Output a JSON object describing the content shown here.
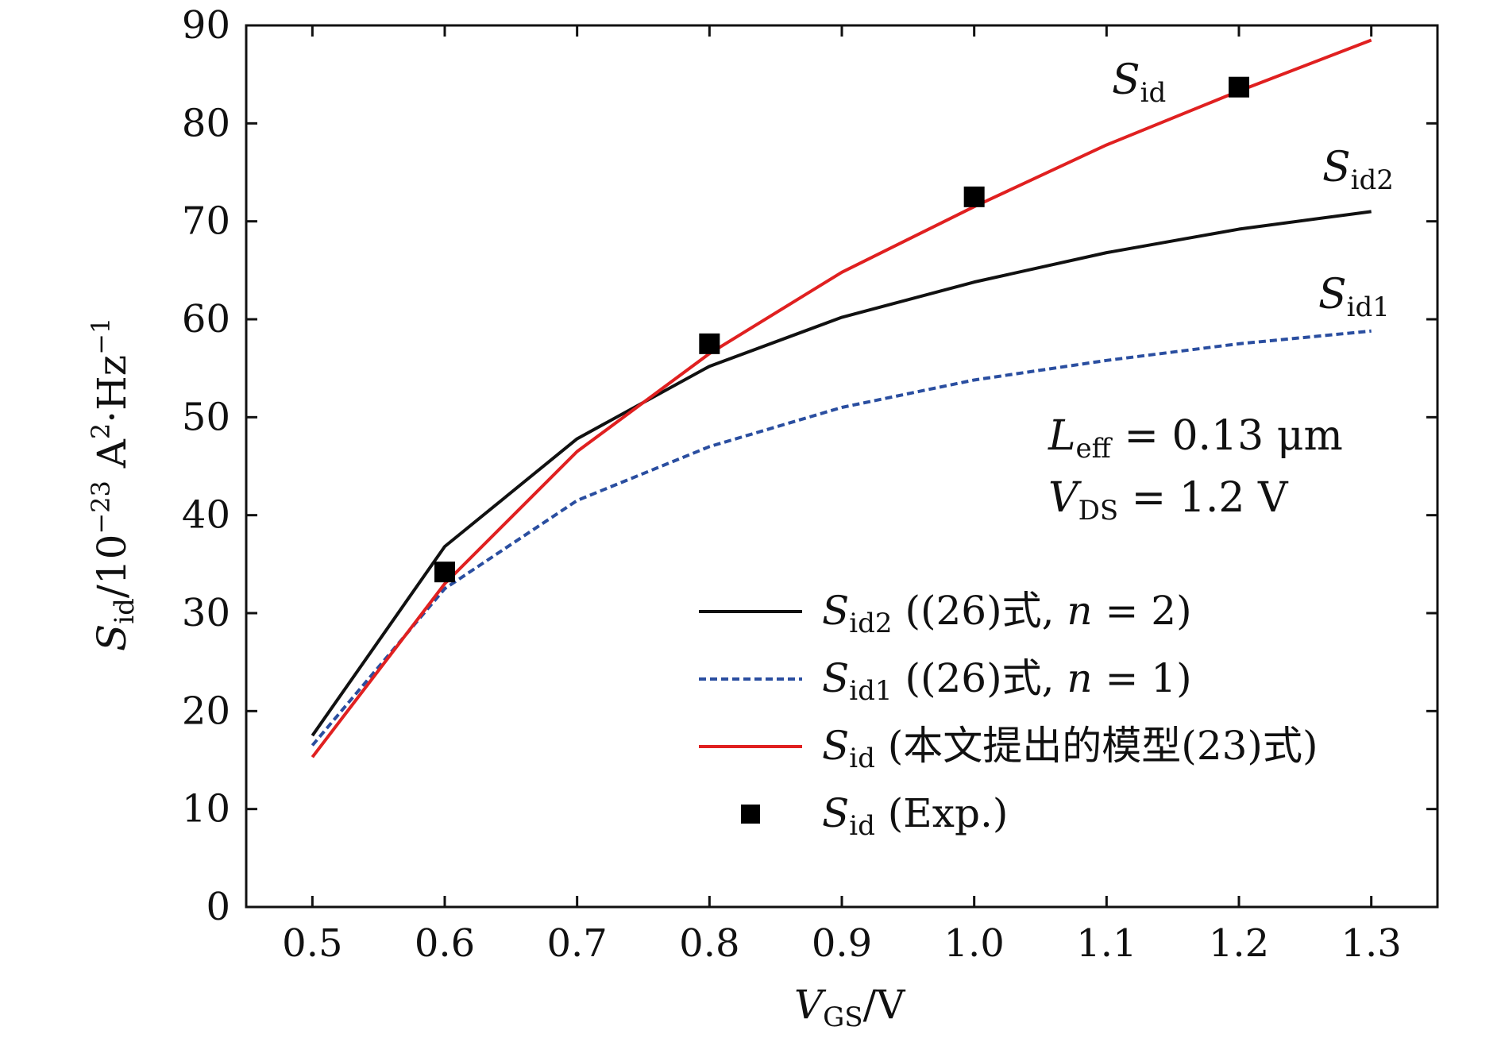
{
  "chart_data": {
    "type": "line",
    "x_ticks": [
      "0.5",
      "0.6",
      "0.7",
      "0.8",
      "0.9",
      "1.0",
      "1.1",
      "1.2",
      "1.3"
    ],
    "y_ticks": [
      "0",
      "10",
      "20",
      "30",
      "40",
      "50",
      "60",
      "70",
      "80",
      "90"
    ],
    "xlim": [
      0.45,
      1.35
    ],
    "ylim": [
      0,
      90
    ],
    "grid": false,
    "legend_position": "lower-right",
    "xlabel": {
      "main": "V",
      "sub": "GS",
      "suffix": "/V"
    },
    "ylabel": {
      "main": "S",
      "sub": "id",
      "mid": "/10",
      "exp": "−23",
      "unit": " A",
      "exp2": "2",
      "unit2": "·Hz",
      "exp3": "−1"
    },
    "series": [
      {
        "name": "S_id2",
        "legend": {
          "main": "S",
          "sub": "id2",
          "rest": " ((26)式, ",
          "var": "n",
          "tail": " = 2)"
        },
        "curve_label": {
          "main": "S",
          "sub": "id2"
        },
        "color": "#111111",
        "style": "solid",
        "x": [
          0.5,
          0.6,
          0.7,
          0.8,
          0.9,
          1.0,
          1.1,
          1.2,
          1.3
        ],
        "y": [
          17.5,
          36.8,
          47.8,
          55.2,
          60.2,
          63.8,
          66.8,
          69.2,
          71.0
        ]
      },
      {
        "name": "S_id1",
        "legend": {
          "main": "S",
          "sub": "id1",
          "rest": " ((26)式, ",
          "var": "n",
          "tail": " = 1)"
        },
        "curve_label": {
          "main": "S",
          "sub": "id1"
        },
        "color": "#2a4ea0",
        "style": "dashed",
        "x": [
          0.5,
          0.6,
          0.7,
          0.8,
          0.9,
          1.0,
          1.1,
          1.2,
          1.3
        ],
        "y": [
          16.5,
          32.5,
          41.5,
          47.0,
          51.0,
          53.8,
          55.8,
          57.5,
          58.8
        ]
      },
      {
        "name": "S_id",
        "legend": {
          "main": "S",
          "sub": "id",
          "rest": " (本文提出的模型(23)式)",
          "var": "",
          "tail": ""
        },
        "curve_label": {
          "main": "S",
          "sub": "id"
        },
        "color": "#e02020",
        "style": "solid",
        "x": [
          0.5,
          0.6,
          0.7,
          0.8,
          0.9,
          1.0,
          1.1,
          1.2,
          1.3
        ],
        "y": [
          15.3,
          33.0,
          46.5,
          56.5,
          64.8,
          71.5,
          77.8,
          83.3,
          88.5
        ]
      },
      {
        "name": "S_id (Exp.)",
        "legend": {
          "main": "S",
          "sub": "id",
          "rest": " (Exp.)",
          "var": "",
          "tail": ""
        },
        "color": "#000000",
        "style": "marker-square",
        "x": [
          0.6,
          0.8,
          1.0,
          1.2
        ],
        "y": [
          34.2,
          57.5,
          72.5,
          83.7
        ]
      }
    ],
    "annotations": [
      {
        "main": "L",
        "sub": "eff",
        "rest": " = 0.13 μm"
      },
      {
        "main": "V",
        "sub": "DS",
        "rest": " = 1.2 V"
      }
    ]
  }
}
